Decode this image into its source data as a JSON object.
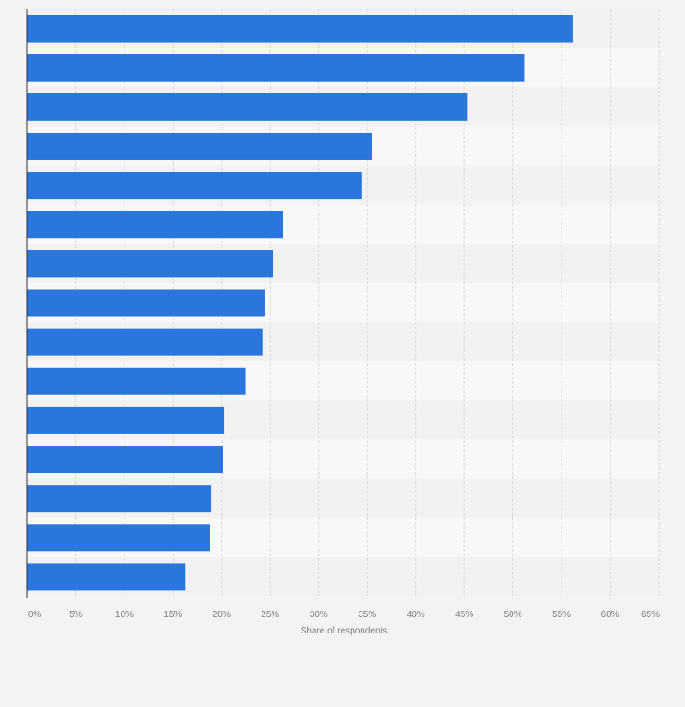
{
  "chart_data": {
    "type": "bar",
    "orientation": "horizontal",
    "title": "",
    "xlabel": "Share of respondents",
    "ylabel": "",
    "xlim": [
      0,
      65
    ],
    "ticks": [
      0,
      5,
      10,
      15,
      20,
      25,
      30,
      35,
      40,
      45,
      50,
      55,
      60,
      65
    ],
    "tick_labels": [
      "0%",
      "5%",
      "10%",
      "15%",
      "20%",
      "25%",
      "30%",
      "35%",
      "40%",
      "45%",
      "50%",
      "55%",
      "60%",
      "65%"
    ],
    "unit": "%",
    "grid": true,
    "values": [
      56.2,
      51.2,
      45.3,
      35.5,
      34.4,
      26.3,
      25.3,
      24.5,
      24.2,
      22.5,
      20.3,
      20.2,
      18.9,
      18.8,
      16.3
    ],
    "colors": {
      "bar": "#2a76dd",
      "background": "#f3f3f3",
      "band_dark": "#f2f2f2",
      "band_light": "#f8f8f8",
      "grid": "#d8d8d8",
      "axis": "#333333"
    }
  }
}
